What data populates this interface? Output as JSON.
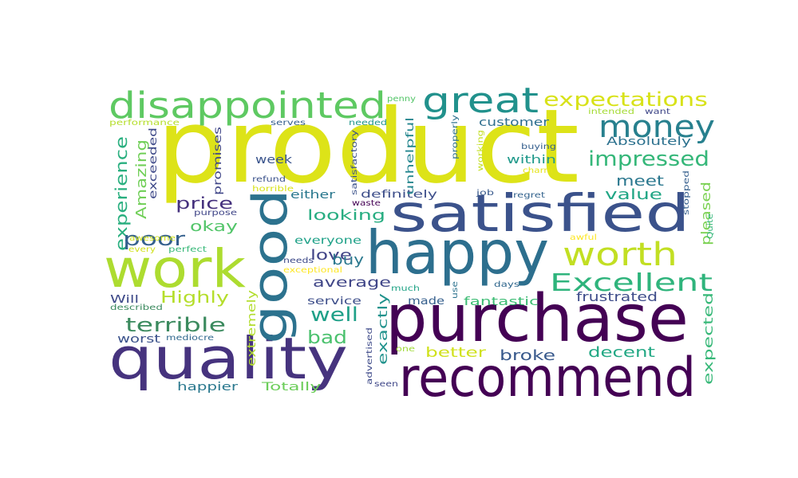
{
  "words": [
    {
      "text": "product",
      "color": "#dde318"
    },
    {
      "text": "happy",
      "color": "#2d6f8e"
    },
    {
      "text": "purchase",
      "color": "#440154"
    },
    {
      "text": "satisfied",
      "color": "#3b528b"
    },
    {
      "text": "recommend",
      "color": "#440154"
    },
    {
      "text": "quality",
      "color": "#46337e"
    },
    {
      "text": "work",
      "color": "#addc30"
    },
    {
      "text": "good",
      "color": "#2c728e"
    },
    {
      "text": "disappointed",
      "color": "#5ec962"
    },
    {
      "text": "great",
      "color": "#21918c"
    },
    {
      "text": "money",
      "color": "#27808e"
    },
    {
      "text": "worth",
      "color": "#c2df23"
    },
    {
      "text": "Excellent",
      "color": "#2fb47c"
    },
    {
      "text": "expectations",
      "color": "#d8e219"
    },
    {
      "text": "impressed",
      "color": "#35b779"
    },
    {
      "text": "terrible",
      "color": "#3b8a5e"
    },
    {
      "text": "experience",
      "color": "#29af7f"
    },
    {
      "text": "poor",
      "color": "#34608d"
    },
    {
      "text": "Amazing",
      "color": "#70cf57"
    },
    {
      "text": "Highly",
      "color": "#b5de2b"
    },
    {
      "text": "price",
      "color": "#46327e"
    },
    {
      "text": "okay",
      "color": "#52c569"
    },
    {
      "text": "looking",
      "color": "#27ad81"
    },
    {
      "text": "love",
      "color": "#414487"
    },
    {
      "text": "well",
      "color": "#1fa088"
    },
    {
      "text": "bad",
      "color": "#4ac16d"
    },
    {
      "text": "buy",
      "color": "#2a788e"
    },
    {
      "text": "average",
      "color": "#404688"
    },
    {
      "text": "meet",
      "color": "#2a778e"
    },
    {
      "text": "value",
      "color": "#21a685"
    },
    {
      "text": "pleased",
      "color": "#7ad151"
    },
    {
      "text": "decent",
      "color": "#22a884"
    },
    {
      "text": "broke",
      "color": "#38598c"
    },
    {
      "text": "better",
      "color": "#d0e11c"
    },
    {
      "text": "expected",
      "color": "#37b878"
    },
    {
      "text": "exactly",
      "color": "#20928c"
    },
    {
      "text": "fantastic",
      "color": "#3dbc74"
    },
    {
      "text": "frustrated",
      "color": "#3e4c8a"
    },
    {
      "text": "extremely",
      "color": "#b2dd2d"
    },
    {
      "text": "worst",
      "color": "#3b528b"
    },
    {
      "text": "happier",
      "color": "#2a788e"
    },
    {
      "text": "Totally",
      "color": "#6ccd5a"
    },
    {
      "text": "Absolutely",
      "color": "#2c718e"
    },
    {
      "text": "customer",
      "color": "#2e6e8e"
    },
    {
      "text": "within",
      "color": "#1f998a"
    },
    {
      "text": "week",
      "color": "#3a548c"
    },
    {
      "text": "either",
      "color": "#2a788e"
    },
    {
      "text": "definitely",
      "color": "#3d4e8a"
    },
    {
      "text": "unhelpful",
      "color": "#24868e"
    },
    {
      "text": "everyone",
      "color": "#1fa188"
    },
    {
      "text": "exceeded",
      "color": "#3e4989"
    },
    {
      "text": "promises",
      "color": "#404688"
    },
    {
      "text": "made",
      "color": "#355f8d"
    },
    {
      "text": "service",
      "color": "#3d4e8a"
    },
    {
      "text": "Will",
      "color": "#3e4a89"
    },
    {
      "text": "penny",
      "color": "#54c568"
    },
    {
      "text": "performance",
      "color": "#b5de2b"
    },
    {
      "text": "serves",
      "color": "#355f8d"
    },
    {
      "text": "needed",
      "color": "#1f958b"
    },
    {
      "text": "buying",
      "color": "#355f8d"
    },
    {
      "text": "intended",
      "color": "#a5db36"
    },
    {
      "text": "want",
      "color": "#3f4788"
    },
    {
      "text": "refund",
      "color": "#3b528b"
    },
    {
      "text": "horrible",
      "color": "#d8e219"
    },
    {
      "text": "satisfactory",
      "color": "#3b528b"
    },
    {
      "text": "properly",
      "color": "#2d708e"
    },
    {
      "text": "working",
      "color": "#c2df23"
    },
    {
      "text": "charm",
      "color": "#e5e419"
    },
    {
      "text": "stopped",
      "color": "#355f8d"
    },
    {
      "text": "Quite",
      "color": "#32b67a"
    },
    {
      "text": "job",
      "color": "#38598c"
    },
    {
      "text": "regret",
      "color": "#33638d"
    },
    {
      "text": "waste",
      "color": "#440154"
    },
    {
      "text": "purpose",
      "color": "#404688"
    },
    {
      "text": "awesome",
      "color": "#d0e11c"
    },
    {
      "text": "every",
      "color": "#d0e11c"
    },
    {
      "text": "perfect",
      "color": "#37b878"
    },
    {
      "text": "needs",
      "color": "#3e4a89"
    },
    {
      "text": "exceptional",
      "color": "#fde725"
    },
    {
      "text": "awful",
      "color": "#fde725"
    },
    {
      "text": "days",
      "color": "#31688e"
    },
    {
      "text": "much",
      "color": "#20a386"
    },
    {
      "text": "use",
      "color": "#2c728e"
    },
    {
      "text": "one",
      "color": "#a0da39"
    },
    {
      "text": "seen",
      "color": "#3f4788"
    },
    {
      "text": "advertised",
      "color": "#3e4a89"
    },
    {
      "text": "mediocre",
      "color": "#31688e"
    },
    {
      "text": "described",
      "color": "#3b8a5e"
    }
  ]
}
